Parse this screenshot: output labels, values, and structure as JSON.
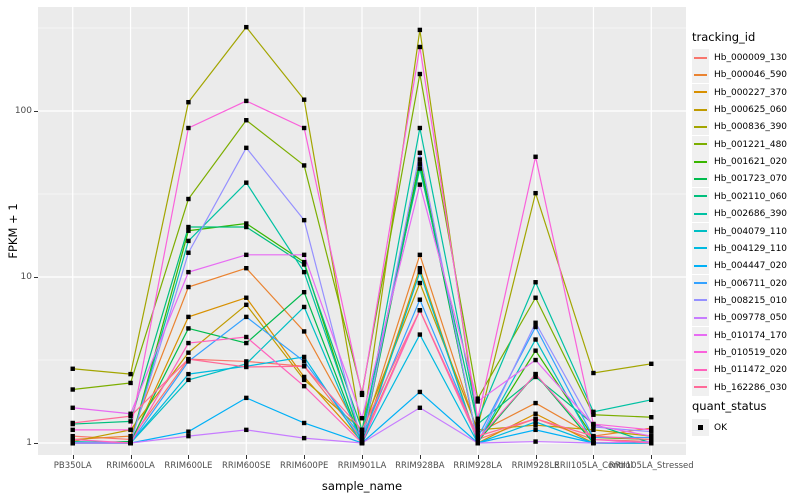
{
  "figure": {
    "background": "#FFFFFF",
    "panel_background": "#EBEBEB",
    "grid_major_color": "#FFFFFF",
    "grid_minor_color": "#F5F5F5",
    "tick_label_color": "#4D4D4D"
  },
  "axes": {
    "x_title": "sample_name",
    "y_title": "FPKM + 1"
  },
  "legend": {
    "tracking_title": "tracking_id",
    "quant_title": "quant_status",
    "quant_items": [
      {
        "label": "OK"
      }
    ]
  },
  "chart_data": {
    "type": "line",
    "x_type": "categorical",
    "y_scale": "log10",
    "title": "",
    "xlabel": "sample_name",
    "ylabel": "FPKM + 1",
    "y_ticks": [
      1,
      10,
      100
    ],
    "y_tick_labels": [
      "1",
      "10",
      "100"
    ],
    "y_minor_breaks": [
      3.162,
      31.62,
      316.2
    ],
    "ylim_displayed": [
      0.85,
      423
    ],
    "grid": true,
    "legend_position": "right",
    "marker": {
      "shape": "square",
      "color": "#000000",
      "size": 4.4,
      "legend_label": "OK"
    },
    "categories": [
      "PB350LA",
      "RRIM600LA",
      "RRIM600LE",
      "RRIM600SE",
      "RRIM600PE",
      "RRIM901LA",
      "RRIM928BA",
      "RRIM928LA",
      "RRIM928LE",
      "RRII105LA_Control",
      "RRII105LA_Stressed"
    ],
    "series": [
      {
        "name": "Hb_000009_130",
        "color": "#F8766D",
        "values": [
          1.1,
          1.05,
          3.2,
          3.1,
          2.9,
          1.05,
          6.3,
          1.05,
          1.4,
          1.05,
          1.02
        ]
      },
      {
        "name": "Hb_000046_590",
        "color": "#EA8331",
        "values": [
          1.05,
          1.1,
          8.7,
          11.3,
          4.7,
          1.1,
          13.6,
          1.15,
          1.74,
          1.1,
          1.23
        ]
      },
      {
        "name": "Hb_000227_370",
        "color": "#D89000",
        "values": [
          1.0,
          1.0,
          5.75,
          7.5,
          2.5,
          1.02,
          11.3,
          1.0,
          1.5,
          1.0,
          1.02
        ]
      },
      {
        "name": "Hb_000625_060",
        "color": "#C09B00",
        "values": [
          1.02,
          1.2,
          3.5,
          6.8,
          2.4,
          1.2,
          9.2,
          1.2,
          1.28,
          1.2,
          1.1
        ]
      },
      {
        "name": "Hb_000836_390",
        "color": "#A3A500",
        "values": [
          2.8,
          2.6,
          113.0,
          320.0,
          117.0,
          1.15,
          308.0,
          1.25,
          32.0,
          2.64,
          3.0
        ]
      },
      {
        "name": "Hb_001221_480",
        "color": "#7CAE00",
        "values": [
          2.1,
          2.3,
          29.5,
          88.0,
          47.0,
          2.0,
          167.0,
          1.85,
          7.5,
          1.48,
          1.43
        ]
      },
      {
        "name": "Hb_001621_020",
        "color": "#39B600",
        "values": [
          1.0,
          1.0,
          19.0,
          21.0,
          12.3,
          1.0,
          51.0,
          1.0,
          3.6,
          1.08,
          1.05
        ]
      },
      {
        "name": "Hb_001723_070",
        "color": "#00BB4E",
        "values": [
          1.0,
          1.02,
          4.9,
          4.0,
          8.1,
          1.0,
          48.0,
          1.02,
          2.6,
          1.0,
          1.0
        ]
      },
      {
        "name": "Hb_002110_060",
        "color": "#00BF7D",
        "values": [
          1.3,
          1.35,
          20.0,
          20.0,
          11.9,
          1.2,
          45.0,
          1.3,
          2.5,
          1.3,
          1.0
        ]
      },
      {
        "name": "Hb_002686_390",
        "color": "#00C1A3",
        "values": [
          1.02,
          1.0,
          16.5,
          37.0,
          10.7,
          1.05,
          79.0,
          1.38,
          9.3,
          1.54,
          1.82
        ]
      },
      {
        "name": "Hb_004079_110",
        "color": "#00BFC4",
        "values": [
          1.0,
          1.0,
          2.4,
          3.0,
          6.6,
          1.0,
          10.7,
          1.0,
          4.2,
          1.0,
          1.0
        ]
      },
      {
        "name": "Hb_004129_110",
        "color": "#00BAE0",
        "values": [
          1.0,
          1.0,
          2.6,
          2.9,
          3.3,
          1.0,
          4.5,
          1.0,
          1.34,
          1.0,
          1.0
        ]
      },
      {
        "name": "Hb_004447_020",
        "color": "#00B0F6",
        "values": [
          1.0,
          1.0,
          1.17,
          1.87,
          1.32,
          1.0,
          2.03,
          1.0,
          1.2,
          1.0,
          1.0
        ]
      },
      {
        "name": "Hb_006711_020",
        "color": "#35A2FF",
        "values": [
          1.0,
          1.0,
          3.1,
          5.75,
          3.1,
          1.08,
          7.3,
          1.08,
          5.0,
          1.08,
          1.08
        ]
      },
      {
        "name": "Hb_008215_010",
        "color": "#9590FF",
        "values": [
          1.0,
          1.0,
          14.0,
          60.0,
          22.0,
          1.0,
          56.0,
          1.0,
          5.3,
          1.25,
          1.17
        ]
      },
      {
        "name": "Hb_009778_050",
        "color": "#C77CFF",
        "values": [
          1.0,
          1.0,
          1.1,
          1.2,
          1.07,
          1.0,
          1.63,
          1.0,
          1.02,
          1.0,
          1.02
        ]
      },
      {
        "name": "Hb_010174_170",
        "color": "#E76BF3",
        "values": [
          1.63,
          1.5,
          10.7,
          13.6,
          13.6,
          1.41,
          36.0,
          1.78,
          3.16,
          1.28,
          1.1
        ]
      },
      {
        "name": "Hb_010519_020",
        "color": "#FA62DB",
        "values": [
          1.2,
          1.2,
          79.0,
          115.0,
          79.0,
          1.95,
          243.0,
          1.4,
          53.0,
          1.3,
          1.2
        ]
      },
      {
        "name": "Hb_011472_020",
        "color": "#FF62BC",
        "values": [
          1.05,
          1.0,
          4.0,
          4.35,
          2.2,
          1.0,
          6.3,
          1.05,
          2.6,
          1.05,
          1.0
        ]
      },
      {
        "name": "Hb_162286_030",
        "color": "#FF6A98",
        "values": [
          1.32,
          1.45,
          3.2,
          2.87,
          2.9,
          1.2,
          6.3,
          1.1,
          1.4,
          1.1,
          1.05
        ]
      }
    ]
  }
}
